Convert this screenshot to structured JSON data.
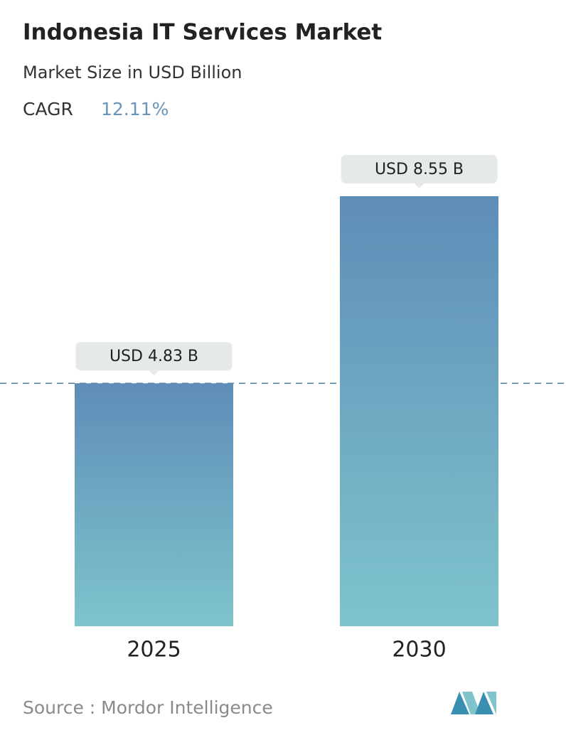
{
  "chart_data": {
    "type": "bar",
    "title": "Indonesia IT Services Market",
    "subtitle": "Market Size in USD Billion",
    "cagr_label": "CAGR",
    "cagr_value": "12.11%",
    "categories": [
      "2025",
      "2030"
    ],
    "values": [
      4.83,
      8.55
    ],
    "value_labels": [
      "USD 4.83 B",
      "USD 8.55 B"
    ],
    "gradient": [
      "#5e8db8",
      "#7ec4cc"
    ],
    "reference_line": true,
    "source": "Source :  Mordor Intelligence"
  }
}
